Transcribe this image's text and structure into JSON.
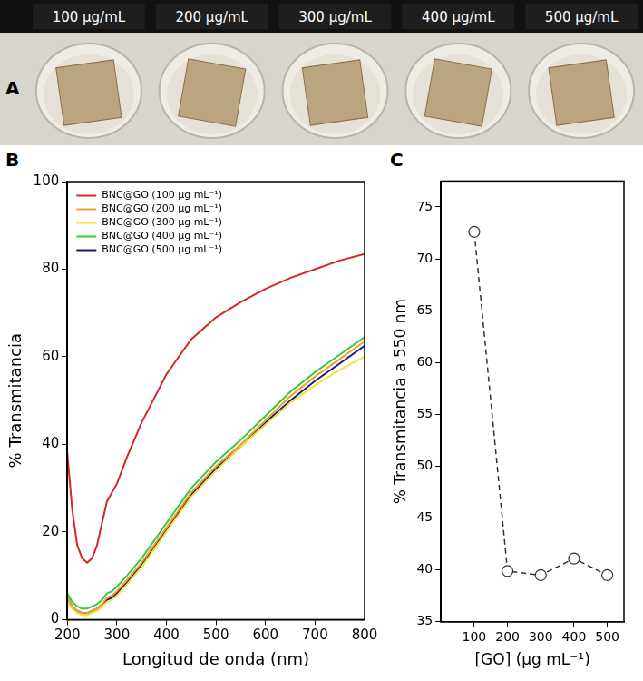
{
  "photo": {
    "panel": "A",
    "labels": [
      "100 µg/mL",
      "200 µg/mL",
      "300 µg/mL",
      "400 µg/mL",
      "500 µg/mL"
    ]
  },
  "chart_data": [
    {
      "panel": "B",
      "type": "line",
      "x_label": "Longitud de onda (nm)",
      "y_label": "% Transmitancia",
      "x": [
        200,
        210,
        220,
        230,
        240,
        250,
        260,
        270,
        280,
        290,
        300,
        320,
        350,
        400,
        450,
        500,
        550,
        600,
        650,
        700,
        750,
        800
      ],
      "series": [
        {
          "name": "BNC@GO (100 µg mL⁻¹)",
          "color": "#d62728",
          "values": [
            38,
            25,
            17,
            14,
            13,
            14,
            17,
            22,
            27,
            29,
            31,
            37,
            45,
            56,
            64,
            69,
            72.5,
            75.5,
            78,
            80,
            82,
            83.5
          ]
        },
        {
          "name": "BNC@GO (200 µg mL⁻¹)",
          "color": "#f0a030",
          "values": [
            5,
            3,
            2,
            1.5,
            1.5,
            2,
            2.5,
            3.5,
            5,
            5.5,
            6.5,
            9,
            13,
            21,
            29,
            35,
            40,
            45.5,
            51,
            55.5,
            59.5,
            63.5
          ]
        },
        {
          "name": "BNC@GO (300 µg mL⁻¹)",
          "color": "#f2e33a",
          "values": [
            4,
            2.5,
            1.5,
            1,
            1,
            1.5,
            2,
            3,
            4,
            4.5,
            5.5,
            8,
            12,
            20,
            28,
            34,
            39.5,
            44.5,
            49.5,
            53.5,
            57,
            60
          ]
        },
        {
          "name": "BNC@GO (400 µg mL⁻¹)",
          "color": "#3cc83c",
          "values": [
            6,
            4,
            3,
            2.5,
            2.5,
            3,
            3.5,
            4.5,
            6,
            6.5,
            7.5,
            10,
            14,
            22,
            30,
            36,
            41,
            46.5,
            52,
            56.5,
            60.5,
            64.5
          ]
        },
        {
          "name": "BNC@GO (500 µg mL⁻¹)",
          "color": "#1a1a80",
          "values": [
            5,
            3,
            2,
            1.5,
            1.5,
            2,
            2.5,
            3.5,
            4.5,
            5,
            6,
            8.5,
            12.5,
            20.5,
            28.5,
            34.5,
            39.5,
            45,
            50,
            54.5,
            58.5,
            62.5
          ]
        }
      ],
      "xlim": [
        200,
        800
      ],
      "xticks": [
        200,
        300,
        400,
        500,
        600,
        700,
        800
      ],
      "ylim": [
        0,
        100
      ],
      "yticks": [
        0,
        20,
        40,
        60,
        80,
        100
      ],
      "grid": false,
      "legend": "upper left"
    },
    {
      "panel": "C",
      "type": "line",
      "x_label": "[GO] (µg mL⁻¹)",
      "y_label": "% Transmitancia a 550 nm",
      "x": [
        100,
        200,
        300,
        400,
        500
      ],
      "values": [
        72.6,
        39.9,
        39.5,
        41.1,
        39.5
      ],
      "color": "#333333",
      "marker": "circle",
      "line_style": "dashed",
      "xlim": [
        0,
        550
      ],
      "xticks": [
        100,
        200,
        300,
        400,
        500
      ],
      "ylim": [
        35,
        77.5
      ],
      "yticks": [
        35,
        40,
        45,
        50,
        55,
        60,
        65,
        70,
        75
      ],
      "grid": false
    }
  ]
}
